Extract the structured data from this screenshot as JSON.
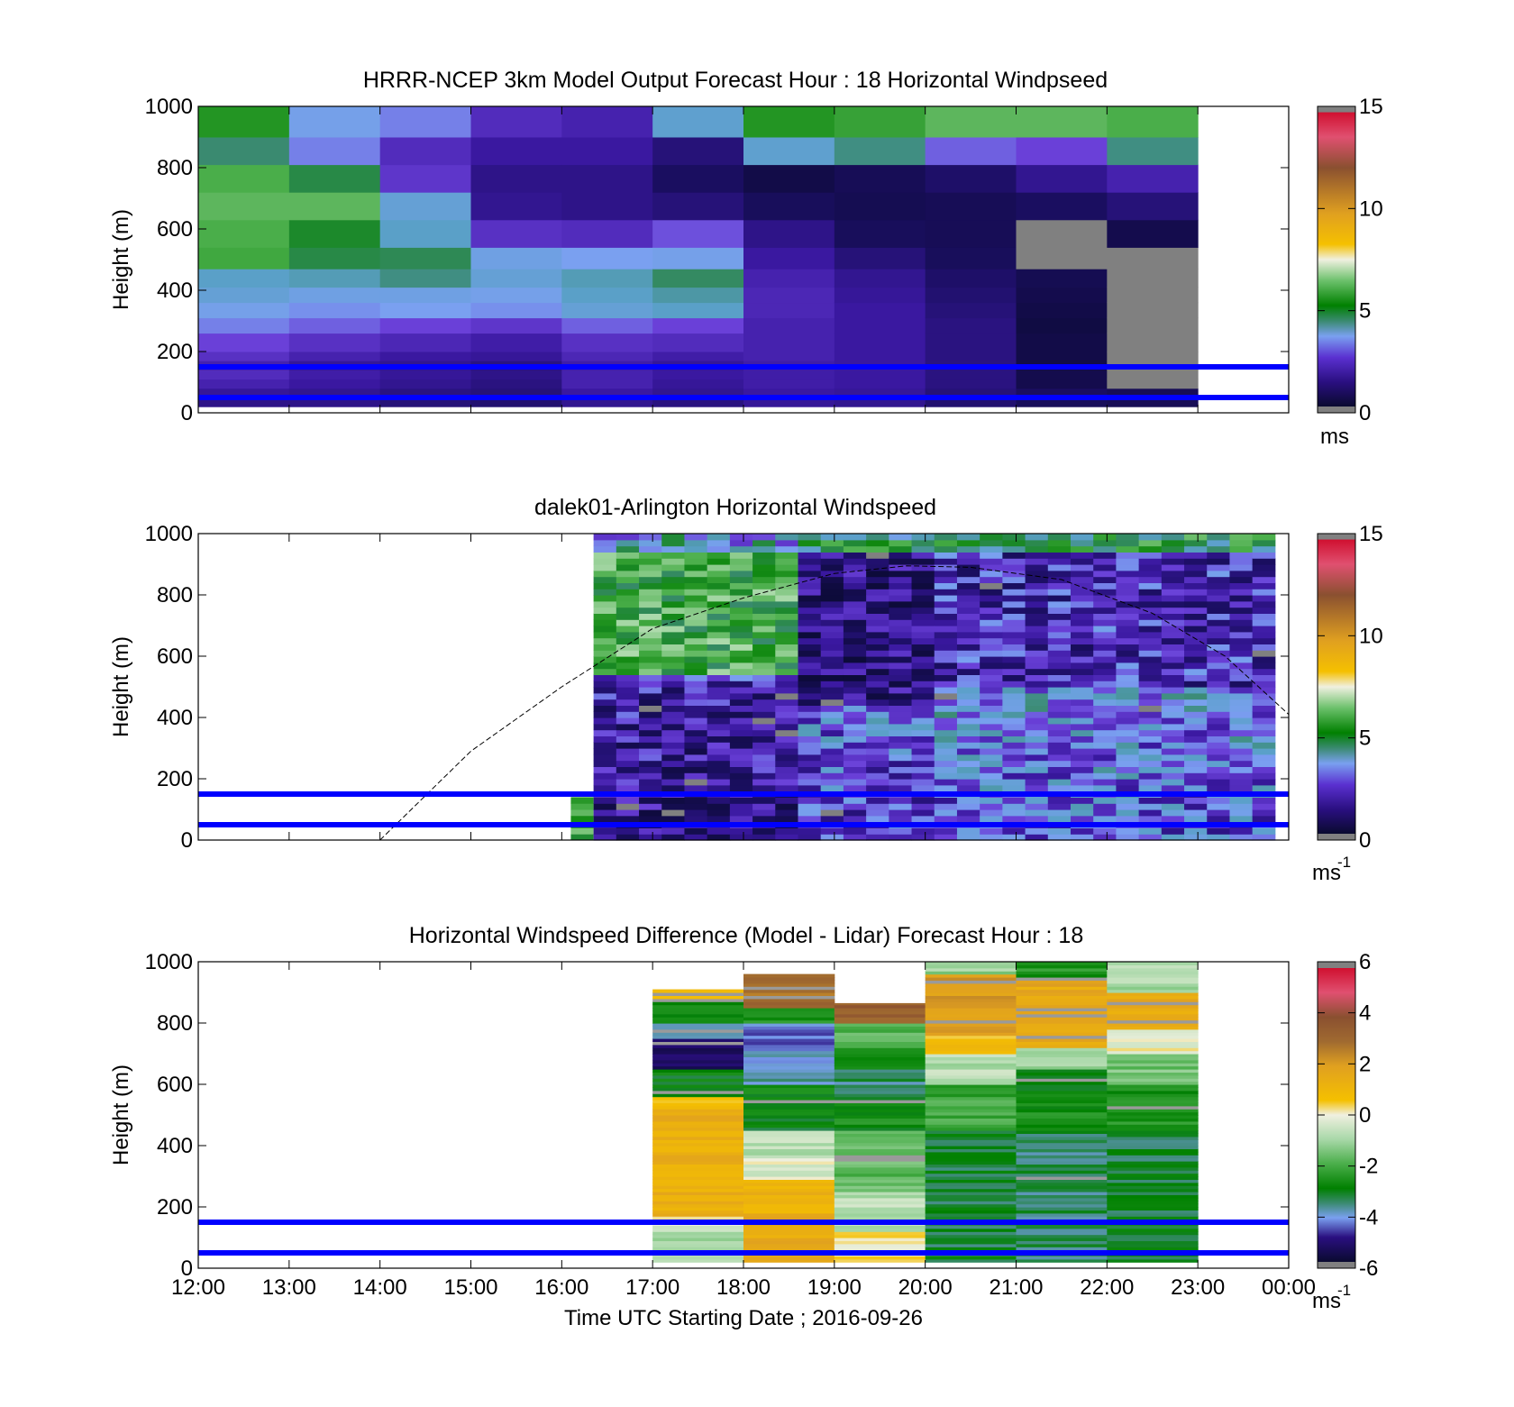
{
  "figure": {
    "xlabel": "Time UTC  Starting Date ; 2016-09-26",
    "x_tick_labels": [
      "12:00",
      "13:00",
      "14:00",
      "15:00",
      "16:00",
      "17:00",
      "18:00",
      "19:00",
      "20:00",
      "21:00",
      "22:00",
      "23:00",
      "00:00"
    ],
    "ref_lines_m": [
      50,
      150
    ],
    "ref_line_color": "#0000ff"
  },
  "chart_data": [
    {
      "type": "heatmap",
      "title": "HRRR-NCEP 3km Model Output   Forecast Hour : 18 Horizontal Windpseed",
      "ylabel": "Height (m)",
      "ylim": [
        0,
        1000
      ],
      "y_ticks": [
        "0",
        "200",
        "400",
        "600",
        "800",
        "1000"
      ],
      "x_range_hours": [
        12,
        24
      ],
      "data_hours": [
        12,
        23
      ],
      "colorbar": {
        "min": 0,
        "max": 15,
        "ticks": [
          "0",
          "5",
          "10",
          "15"
        ],
        "unit": "ms"
      },
      "grid": false,
      "missing_color": "#808080",
      "cell_hours": [
        12,
        13,
        14,
        15,
        16,
        17,
        18,
        19,
        20,
        21,
        22
      ],
      "level_bounds_m": [
        20,
        50,
        80,
        110,
        140,
        170,
        200,
        260,
        310,
        360,
        410,
        470,
        540,
        630,
        720,
        810,
        900,
        1000
      ],
      "columns": [
        [
          1.5,
          1.7,
          2.0,
          2.2,
          2.0,
          2.3,
          2.6,
          3.0,
          3.3,
          3.6,
          3.8,
          5.5,
          5.6,
          5.8,
          5.6,
          4.3,
          5.2
        ],
        [
          1.5,
          1.6,
          1.8,
          1.9,
          1.7,
          2.0,
          2.3,
          2.8,
          3.1,
          3.4,
          3.9,
          4.6,
          4.8,
          5.8,
          4.6,
          3.0,
          3.3
        ],
        [
          1.3,
          1.4,
          1.6,
          1.7,
          1.6,
          1.8,
          2.1,
          2.6,
          3.2,
          3.4,
          4.2,
          4.5,
          3.8,
          3.6,
          2.4,
          2.2,
          3.0
        ],
        [
          1.2,
          1.3,
          1.4,
          1.5,
          1.4,
          1.7,
          1.9,
          2.4,
          3.1,
          3.3,
          3.6,
          3.4,
          2.3,
          1.6,
          1.5,
          1.8,
          2.2
        ],
        [
          1.6,
          1.8,
          2.0,
          2.0,
          1.9,
          2.1,
          2.3,
          2.8,
          3.6,
          3.8,
          3.9,
          3.2,
          2.2,
          1.5,
          1.5,
          1.8,
          2.0
        ],
        [
          1.4,
          1.6,
          1.7,
          1.8,
          1.7,
          1.9,
          2.2,
          2.6,
          3.8,
          4.0,
          4.4,
          3.3,
          2.7,
          1.3,
          1.0,
          1.3,
          3.7
        ],
        [
          1.7,
          1.8,
          1.9,
          1.9,
          1.9,
          2.0,
          2.0,
          2.0,
          2.1,
          2.1,
          2.0,
          1.8,
          1.5,
          0.9,
          0.5,
          3.7,
          5.2
        ],
        [
          1.6,
          1.7,
          1.8,
          1.8,
          1.8,
          1.8,
          1.8,
          1.8,
          1.8,
          1.7,
          1.6,
          1.3,
          0.9,
          0.7,
          0.8,
          4.2,
          5.4
        ],
        [
          1.2,
          1.3,
          1.4,
          1.4,
          1.4,
          1.4,
          1.4,
          1.4,
          1.3,
          1.2,
          1.1,
          0.9,
          0.8,
          0.8,
          1.1,
          2.8,
          5.8
        ],
        [
          0.9,
          1.0,
          0.6,
          0.6,
          0.5,
          0.5,
          0.5,
          0.4,
          0.5,
          0.6,
          0.7,
          null,
          null,
          1.0,
          1.6,
          2.6,
          5.8
        ],
        [
          0.8,
          0.8,
          null,
          null,
          null,
          null,
          null,
          null,
          null,
          null,
          null,
          null,
          0.6,
          1.3,
          2.0,
          4.2,
          5.6
        ]
      ]
    },
    {
      "type": "heatmap",
      "title": "dalek01-Arlington  Horizontal Windspeed",
      "ylabel": "Height (m)",
      "ylim": [
        0,
        1000
      ],
      "y_ticks": [
        "0",
        "200",
        "400",
        "600",
        "800",
        "1000"
      ],
      "x_range_hours": [
        12,
        24
      ],
      "data_hours": [
        16.35,
        23.85
      ],
      "colorbar": {
        "min": 0,
        "max": 15,
        "ticks": [
          "0",
          "5",
          "10",
          "15"
        ],
        "unit": "ms",
        "unit_exponent": "-1"
      },
      "grid": false,
      "missing_color": "#808080",
      "note_profile": {
        "start_hour": 16.1,
        "end_hour": 16.35,
        "top_m": 140,
        "value": 5.5
      },
      "structure": [
        {
          "from_hour": 16.35,
          "to_hour": 18.5,
          "lower_m": 540,
          "mean_below": 1.4,
          "mean_above": 5.5,
          "top_mean": 3.6
        },
        {
          "from_hour": 18.5,
          "to_hour": 20.0,
          "lower_m": 450,
          "mean_below": 2.3,
          "mean_above": 1.3,
          "top_mean": 4.5
        },
        {
          "from_hour": 20.0,
          "to_hour": 23.85,
          "lower_m": 500,
          "mean_below": 2.6,
          "mean_above": 2.1,
          "top_mean": 4.8
        }
      ],
      "overlay_curve": {
        "style": "dashed",
        "color": "#000000",
        "points": [
          [
            14.0,
            0
          ],
          [
            15.0,
            290
          ],
          [
            16.0,
            500
          ],
          [
            17.0,
            690
          ],
          [
            18.0,
            790
          ],
          [
            19.0,
            870
          ],
          [
            19.8,
            895
          ],
          [
            20.5,
            890
          ],
          [
            21.5,
            850
          ],
          [
            22.5,
            740
          ],
          [
            23.3,
            600
          ],
          [
            24.0,
            410
          ]
        ]
      }
    },
    {
      "type": "heatmap",
      "title": "Horizontal Windspeed Difference (Model - Lidar) Forecast Hour : 18",
      "ylabel": "Height (m)",
      "ylim": [
        0,
        1000
      ],
      "y_ticks": [
        "0",
        "200",
        "400",
        "600",
        "800",
        "1000"
      ],
      "x_range_hours": [
        12,
        24
      ],
      "data_hours": [
        17,
        23
      ],
      "colorbar": {
        "min": -6,
        "max": 6,
        "ticks": [
          "-6",
          "-4",
          "-2",
          "0",
          "2",
          "4",
          "6"
        ],
        "unit": "ms",
        "unit_exponent": "-1"
      },
      "grid": false,
      "columns": [
        {
          "hour": 17,
          "top_m": 910,
          "segments": [
            [
              20,
              140,
              -0.9
            ],
            [
              140,
              170,
              0.0
            ],
            [
              170,
              520,
              1.4
            ],
            [
              520,
              560,
              0.6
            ],
            [
              560,
              650,
              -3.0
            ],
            [
              650,
              750,
              -5.2
            ],
            [
              750,
              800,
              -4.0
            ],
            [
              800,
              880,
              -2.8
            ],
            [
              880,
              910,
              1.0
            ]
          ]
        },
        {
          "hour": 18,
          "top_m": 960,
          "segments": [
            [
              20,
              180,
              1.5
            ],
            [
              180,
              290,
              1.3
            ],
            [
              290,
              360,
              -0.2
            ],
            [
              360,
              450,
              -0.8
            ],
            [
              450,
              600,
              -3.0
            ],
            [
              600,
              720,
              -4.0
            ],
            [
              720,
              800,
              -4.5
            ],
            [
              800,
              850,
              -2.5
            ],
            [
              850,
              960,
              3.0
            ]
          ]
        },
        {
          "hour": 19,
          "top_m": 865,
          "segments": [
            [
              20,
              120,
              0.2
            ],
            [
              120,
              250,
              -0.8
            ],
            [
              250,
              450,
              -1.8
            ],
            [
              450,
              550,
              -2.8
            ],
            [
              550,
              650,
              -3.6
            ],
            [
              650,
              720,
              -3.0
            ],
            [
              720,
              800,
              -1.8
            ],
            [
              800,
              865,
              3.4
            ]
          ]
        },
        {
          "hour": 20,
          "top_m": 1000,
          "segments": [
            [
              20,
              450,
              -3.3
            ],
            [
              450,
              600,
              -2.2
            ],
            [
              600,
              700,
              -0.8
            ],
            [
              700,
              760,
              0.8
            ],
            [
              760,
              960,
              2.0
            ],
            [
              960,
              1000,
              -1.2
            ]
          ]
        },
        {
          "hour": 21,
          "top_m": 1000,
          "segments": [
            [
              20,
              450,
              -3.5
            ],
            [
              450,
              650,
              -2.8
            ],
            [
              650,
              720,
              -1.0
            ],
            [
              720,
              940,
              1.6
            ],
            [
              940,
              1000,
              -2.6
            ]
          ]
        },
        {
          "hour": 22,
          "top_m": 1000,
          "segments": [
            [
              20,
              450,
              -3.3
            ],
            [
              450,
              600,
              -2.6
            ],
            [
              600,
              700,
              -1.6
            ],
            [
              700,
              780,
              0.0
            ],
            [
              780,
              900,
              1.6
            ],
            [
              900,
              1000,
              -1.0
            ]
          ]
        }
      ]
    }
  ]
}
